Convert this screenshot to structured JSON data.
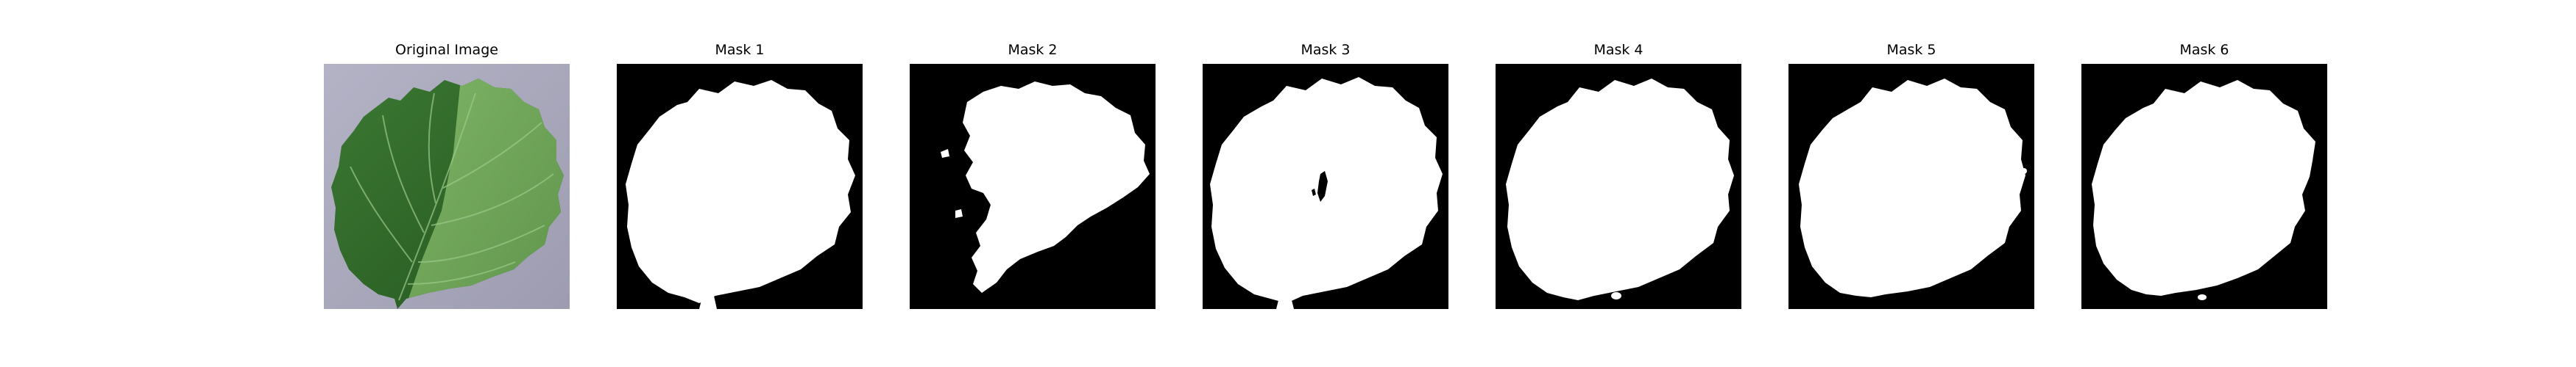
{
  "panels": [
    {
      "title": "Original Image",
      "kind": "photo",
      "image": "strawberry-leaf-photo"
    },
    {
      "title": "Mask 1",
      "kind": "mask",
      "image": "leaf-mask"
    },
    {
      "title": "Mask 2",
      "kind": "mask",
      "image": "partial-leaf-mask"
    },
    {
      "title": "Mask 3",
      "kind": "mask",
      "image": "leaf-mask-with-holes"
    },
    {
      "title": "Mask 4",
      "kind": "mask",
      "image": "leaf-mask"
    },
    {
      "title": "Mask 5",
      "kind": "mask",
      "image": "leaf-mask"
    },
    {
      "title": "Mask 6",
      "kind": "mask",
      "image": "leaf-mask"
    }
  ],
  "colors": {
    "background": "#ffffff",
    "mask_fg": "#ffffff",
    "mask_bg": "#000000",
    "photo_bg": "#a9a7bb",
    "leaf_dark": "#2f6a2b",
    "leaf_light": "#6fa35a"
  }
}
